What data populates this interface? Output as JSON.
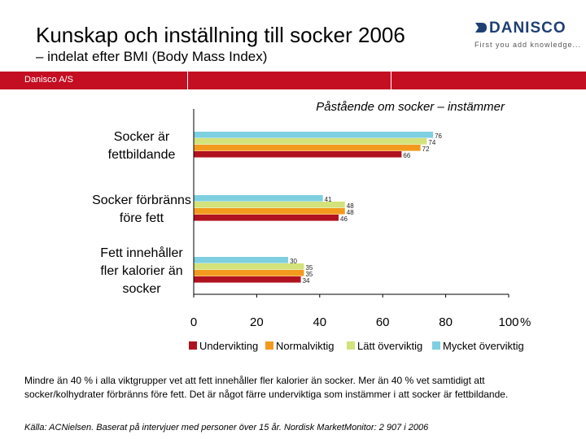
{
  "header": {
    "title": "Kunskap och inställning till socker 2006",
    "subtitle": "– indelat efter BMI (Body Mass Index)",
    "band_text": "Danisco A/S"
  },
  "logo": {
    "wordmark": "DANISCO",
    "tagline": "First you add knowledge...",
    "color": "#1f3f73"
  },
  "chart_data": {
    "type": "bar",
    "orientation": "horizontal",
    "title": "Påstående om socker – instämmer",
    "categories": [
      "Socker är fettbildande",
      "Socker förbränns före fett",
      "Fett innehåller fler kalorier än socker"
    ],
    "category_lines": [
      [
        "Socker är",
        "fettbildande"
      ],
      [
        "Socker förbränns",
        "före fett"
      ],
      [
        "Fett innehåller",
        "fler kalorier än",
        "socker"
      ]
    ],
    "series": [
      {
        "name": "Undervikting",
        "color": "#b0121f",
        "values": [
          66,
          46,
          34
        ]
      },
      {
        "name": "Normalviktig",
        "color": "#f39a1e",
        "values": [
          72,
          48,
          35
        ]
      },
      {
        "name": "Lätt överviktig",
        "color": "#d3e27a",
        "values": [
          74,
          48,
          35
        ]
      },
      {
        "name": "Mycket överviktig",
        "color": "#7ecfdf",
        "values": [
          76,
          41,
          30
        ]
      }
    ],
    "xlim": [
      0,
      100
    ],
    "xticks": [
      0,
      20,
      40,
      60,
      80,
      100
    ],
    "tick_labels": [
      "0",
      "20",
      "40",
      "60",
      "80",
      "100"
    ],
    "x_unit": "%",
    "legend_position": "bottom",
    "grid": false
  },
  "footer": {
    "notes": "Mindre än 40 % i alla viktgrupper vet att fett innehåller fler kalorier än socker. Mer än 40 % vet samtidigt att socker/kolhydrater förbränns före fett. Det är något färre underviktiga som instämmer i att socker är fettbildande.",
    "source": "Källa: ACNielsen. Baserat på intervjuer med personer över 15 år. Nordisk MarketMonitor: 2 907 i 2006"
  }
}
